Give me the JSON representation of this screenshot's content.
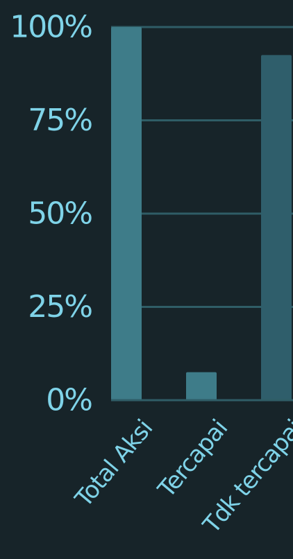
{
  "chart_data": {
    "type": "bar",
    "categories": [
      "Total Aksi",
      "Tercapai",
      "Tdk tercapai"
    ],
    "values": [
      100,
      7.5,
      92.5
    ],
    "colors": [
      "#3e7c89",
      "#3e7c89",
      "#2f5e6b"
    ],
    "y_ticks": [
      "0%",
      "25%",
      "50%",
      "75%",
      "100%"
    ],
    "ylim": [
      0,
      100
    ],
    "grid": true,
    "title": "",
    "xlabel": "",
    "ylabel": ""
  }
}
